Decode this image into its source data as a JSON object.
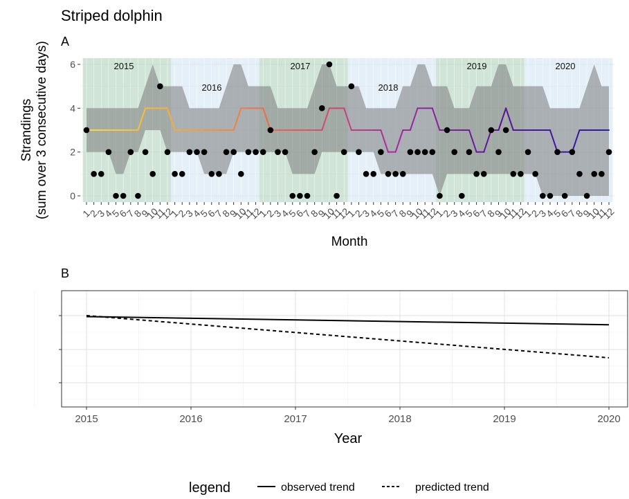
{
  "title": "Striped dolphin",
  "panel_a_label": "A",
  "panel_b_label": "B",
  "legend": {
    "title": "legend",
    "items": [
      {
        "label": "observed trend",
        "style": "solid"
      },
      {
        "label": "predicted trend",
        "style": "dashed"
      }
    ]
  },
  "chart_data": [
    {
      "type": "line",
      "panel": "A",
      "ylabel": "Strandings\n(sum over 3 consecutive days)",
      "xlabel": "Month",
      "ylim": [
        0,
        6
      ],
      "yticks": [
        0,
        2,
        4,
        6
      ],
      "grid": true,
      "years": [
        "2015",
        "2016",
        "2017",
        "2018",
        "2019",
        "2020"
      ],
      "year_colors": [
        "#a9cfb8",
        "#cfe1f2",
        "#a9cfb8",
        "#cfe1f2",
        "#a9cfb8",
        "#cfe1f2"
      ],
      "x_tick_labels_per_year": [
        "1",
        "2",
        "3",
        "4",
        "5",
        "6",
        "7",
        "8",
        "9",
        "10",
        "11",
        "12"
      ],
      "observed": [
        3,
        1,
        1,
        2,
        0,
        0,
        2,
        0,
        2,
        1,
        5,
        2,
        1,
        1,
        2,
        2,
        2,
        1,
        1,
        2,
        2,
        1,
        2,
        2,
        2,
        3,
        2,
        2,
        0,
        0,
        0,
        2,
        4,
        6,
        0,
        2,
        5,
        2,
        1,
        1,
        2,
        1,
        1,
        1,
        2,
        2,
        2,
        2,
        0,
        3,
        2,
        0,
        2,
        1,
        1,
        3,
        2,
        3,
        1,
        1,
        2,
        1,
        0,
        0,
        2,
        0,
        2,
        1,
        0,
        1,
        1,
        2
      ],
      "fitted": [
        3,
        3,
        3,
        3,
        3,
        3,
        3,
        3,
        4,
        4,
        4,
        4,
        3,
        3,
        3,
        3,
        3,
        3,
        3,
        3,
        3,
        4,
        4,
        4,
        4,
        3,
        3,
        3,
        3,
        3,
        3,
        3,
        3,
        4,
        4,
        4,
        3,
        3,
        3,
        3,
        3,
        2,
        2,
        3,
        3,
        4,
        4,
        4,
        3,
        3,
        3,
        3,
        3,
        2,
        2,
        3,
        3,
        4,
        3,
        3,
        3,
        3,
        3,
        3,
        2,
        2,
        2,
        3,
        3,
        3,
        3,
        3
      ],
      "lower": [
        2,
        2,
        2,
        2,
        1,
        1,
        2,
        2,
        3,
        3,
        3,
        2,
        2,
        2,
        2,
        2,
        1,
        1,
        1,
        1,
        2,
        2,
        2,
        2,
        2,
        2,
        2,
        2,
        1,
        1,
        1,
        1,
        2,
        2,
        2,
        2,
        2,
        2,
        2,
        2,
        1,
        1,
        1,
        1,
        1,
        1,
        1,
        1,
        0,
        1,
        1,
        1,
        1,
        1,
        1,
        1,
        1,
        1,
        1,
        1,
        1,
        1,
        0,
        0,
        0,
        0,
        0,
        0,
        0,
        0,
        0,
        0
      ],
      "upper": [
        4,
        4,
        4,
        4,
        4,
        4,
        4,
        4,
        5,
        6,
        5,
        5,
        5,
        5,
        4,
        4,
        4,
        4,
        4,
        5,
        6,
        6,
        5,
        5,
        5,
        5,
        4,
        4,
        4,
        4,
        4,
        5,
        6,
        6,
        5,
        5,
        5,
        5,
        4,
        4,
        4,
        4,
        4,
        5,
        5,
        6,
        6,
        5,
        5,
        5,
        4,
        4,
        4,
        5,
        5,
        5,
        6,
        6,
        5,
        5,
        5,
        5,
        5,
        4,
        4,
        4,
        4,
        4,
        5,
        6,
        5,
        5
      ],
      "fitted_gradient": [
        "#fcd93b",
        "#f7a032",
        "#e55a55",
        "#a02aa0",
        "#5a12a0",
        "#2a1aa0"
      ]
    },
    {
      "type": "line",
      "panel": "B",
      "xlabel": "Year",
      "ylabel": "",
      "xlim": [
        2014.75,
        2020.2
      ],
      "xticks": [
        2015,
        2016,
        2017,
        2018,
        2019,
        2020
      ],
      "grid": true,
      "series": [
        {
          "name": "observed trend",
          "style": "solid",
          "x": [
            2015,
            2020
          ],
          "y": [
            0.97,
            0.74
          ]
        },
        {
          "name": "predicted trend",
          "style": "dashed",
          "x": [
            2015,
            2020
          ],
          "y": [
            1.0,
            -0.2
          ]
        }
      ],
      "ylim": [
        -1.6,
        2.2
      ]
    }
  ]
}
